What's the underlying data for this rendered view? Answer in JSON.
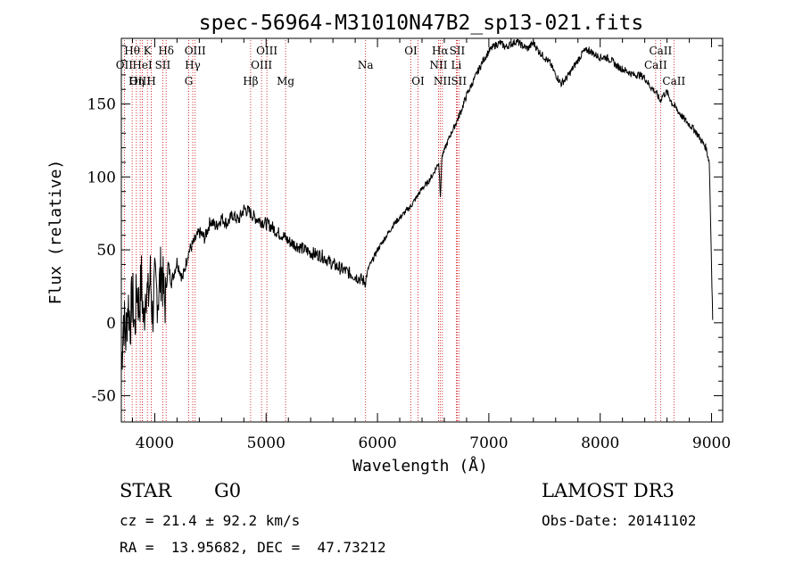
{
  "chart_data": {
    "type": "line",
    "title": "spec-56964-M31010N47B2_sp13-021.fits",
    "xlabel": "Wavelength (Å)",
    "ylabel": "Flux (relative)",
    "xlim": [
      3700,
      9100
    ],
    "ylim": [
      -68,
      195
    ],
    "xticks": [
      4000,
      5000,
      6000,
      7000,
      8000,
      9000
    ],
    "yticks": [
      -50,
      0,
      50,
      100,
      150
    ],
    "series": [
      {
        "name": "flux",
        "x": [
          3700,
          3720,
          3740,
          3760,
          3780,
          3800,
          3820,
          3840,
          3860,
          3880,
          3900,
          3920,
          3940,
          3960,
          3980,
          4000,
          4030,
          4060,
          4090,
          4120,
          4150,
          4200,
          4250,
          4300,
          4350,
          4400,
          4450,
          4500,
          4550,
          4600,
          4650,
          4700,
          4750,
          4800,
          4850,
          4900,
          4950,
          5000,
          5050,
          5100,
          5150,
          5200,
          5250,
          5300,
          5400,
          5500,
          5600,
          5700,
          5800,
          5850,
          5890,
          5920,
          5950,
          6000,
          6050,
          6100,
          6150,
          6200,
          6250,
          6300,
          6350,
          6400,
          6450,
          6500,
          6550,
          6565,
          6580,
          6600,
          6650,
          6700,
          6750,
          6800,
          6850,
          6900,
          6950,
          7000,
          7050,
          7100,
          7150,
          7200,
          7250,
          7300,
          7350,
          7400,
          7450,
          7500,
          7550,
          7600,
          7650,
          7700,
          7750,
          7800,
          7850,
          7900,
          7950,
          8000,
          8050,
          8100,
          8150,
          8200,
          8250,
          8300,
          8350,
          8400,
          8450,
          8500,
          8540,
          8560,
          8600,
          8650,
          8700,
          8750,
          8800,
          8850,
          8900,
          8950,
          8980,
          9000,
          9010
        ],
        "y": [
          -30,
          5,
          -10,
          15,
          0,
          20,
          -5,
          25,
          10,
          30,
          -2,
          28,
          15,
          32,
          5,
          25,
          18,
          38,
          12,
          40,
          28,
          42,
          30,
          48,
          55,
          62,
          58,
          70,
          66,
          72,
          68,
          74,
          70,
          78,
          76,
          72,
          70,
          68,
          66,
          62,
          60,
          56,
          54,
          52,
          48,
          46,
          40,
          36,
          32,
          30,
          28,
          38,
          42,
          50,
          56,
          62,
          68,
          72,
          76,
          80,
          86,
          92,
          96,
          102,
          110,
          88,
          115,
          118,
          128,
          136,
          145,
          156,
          164,
          172,
          180,
          186,
          190,
          192,
          189,
          191,
          193,
          190,
          188,
          192,
          186,
          182,
          178,
          170,
          164,
          168,
          174,
          180,
          186,
          187,
          184,
          182,
          182,
          180,
          176,
          174,
          172,
          170,
          170,
          168,
          162,
          158,
          152,
          156,
          158,
          150,
          145,
          140,
          136,
          132,
          126,
          120,
          110,
          40,
          2
        ]
      }
    ],
    "lines": [
      {
        "label": "Hθ",
        "wavelength": 3797,
        "row": 1
      },
      {
        "label": "OII",
        "wavelength": 3727,
        "row": 2
      },
      {
        "label": "OIII",
        "wavelength": 3869,
        "row": 3
      },
      {
        "label": "K",
        "wavelength": 3934,
        "row": 1
      },
      {
        "label": "HeI",
        "wavelength": 3889,
        "row": 2
      },
      {
        "label": "Hη",
        "wavelength": 3835,
        "row": 3
      },
      {
        "label": "SII",
        "wavelength": 4072,
        "row": 2
      },
      {
        "label": "H",
        "wavelength": 3969,
        "row": 3
      },
      {
        "label": "Hδ",
        "wavelength": 4102,
        "row": 1
      },
      {
        "label": "OIII",
        "wavelength": 4363,
        "row": 1
      },
      {
        "label": "Hγ",
        "wavelength": 4341,
        "row": 2
      },
      {
        "label": "G",
        "wavelength": 4305,
        "row": 3
      },
      {
        "label": "OIII",
        "wavelength": 5007,
        "row": 1
      },
      {
        "label": "OIII",
        "wavelength": 4959,
        "row": 2
      },
      {
        "label": "Hβ",
        "wavelength": 4861,
        "row": 3
      },
      {
        "label": "Mg",
        "wavelength": 5175,
        "row": 3
      },
      {
        "label": "Na",
        "wavelength": 5893,
        "row": 2
      },
      {
        "label": "OI",
        "wavelength": 6300,
        "row": 1
      },
      {
        "label": "OI",
        "wavelength": 6364,
        "row": 3
      },
      {
        "label": "Hα",
        "wavelength": 6563,
        "row": 1
      },
      {
        "label": "SII",
        "wavelength": 6716,
        "row": 1
      },
      {
        "label": "NII",
        "wavelength": 6548,
        "row": 2
      },
      {
        "label": "Li",
        "wavelength": 6708,
        "row": 2
      },
      {
        "label": "NII",
        "wavelength": 6583,
        "row": 3
      },
      {
        "label": "SII",
        "wavelength": 6731,
        "row": 3
      },
      {
        "label": "CaII",
        "wavelength": 8542,
        "row": 1
      },
      {
        "label": "CaII",
        "wavelength": 8498,
        "row": 2
      },
      {
        "label": "CaII",
        "wavelength": 8662,
        "row": 3
      }
    ],
    "line_color": "#000000",
    "marker_color": "#cc0000"
  },
  "info": {
    "class": "STAR",
    "subclass": "G0",
    "survey": "LAMOST DR3",
    "cz": "cz = 21.4 ± 92.2 km/s",
    "obs_date": "Obs-Date: 20141102",
    "coords": "RA =  13.95682, DEC =  47.73212"
  }
}
